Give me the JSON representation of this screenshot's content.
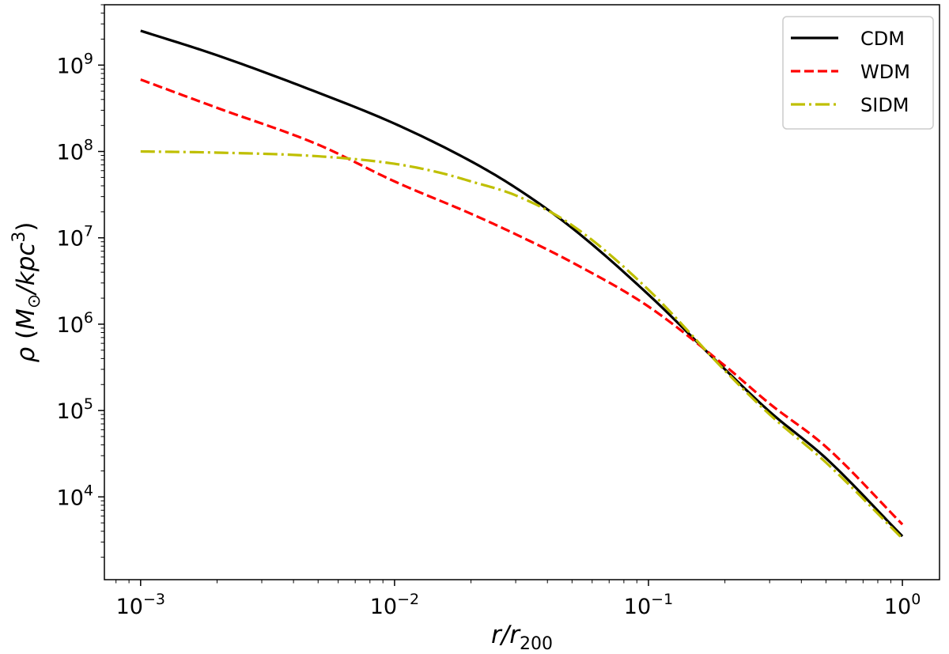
{
  "chart_data": {
    "type": "line",
    "xscale": "log",
    "yscale": "log",
    "xlim": [
      0.00072,
      1.4
    ],
    "ylim": [
      1100,
      5000000000
    ],
    "xlabel": {
      "main": "r/r",
      "sub": "200"
    },
    "ylabel": {
      "rho": "ρ",
      "open": " (",
      "m": "M",
      "sun": "⊙",
      "unit": "/kpc",
      "exp": "3",
      "close": ")"
    },
    "x_ticks": [
      {
        "value": 0.001,
        "base": "10",
        "exp": "−3"
      },
      {
        "value": 0.01,
        "base": "10",
        "exp": "−2"
      },
      {
        "value": 0.1,
        "base": "10",
        "exp": "−1"
      },
      {
        "value": 1,
        "base": "10",
        "exp": "0"
      }
    ],
    "y_ticks": [
      {
        "value": 10000,
        "base": "10",
        "exp": "4"
      },
      {
        "value": 100000,
        "base": "10",
        "exp": "5"
      },
      {
        "value": 1000000,
        "base": "10",
        "exp": "6"
      },
      {
        "value": 10000000,
        "base": "10",
        "exp": "7"
      },
      {
        "value": 100000000,
        "base": "10",
        "exp": "8"
      },
      {
        "value": 1000000000,
        "base": "10",
        "exp": "9"
      }
    ],
    "legend_position": "top-right",
    "series": [
      {
        "name": "CDM",
        "color": "#000000",
        "style": "solid",
        "x": [
          0.001,
          0.002,
          0.005,
          0.01,
          0.02,
          0.03,
          0.05,
          0.1,
          0.2,
          0.3,
          0.5,
          1.0
        ],
        "y": [
          2500000000,
          1300000000,
          480000000,
          210000000,
          77000000,
          38000000,
          13000000,
          2200000,
          300000,
          97000,
          28000,
          3500
        ]
      },
      {
        "name": "WDM",
        "color": "#ff0000",
        "style": "dashed",
        "x": [
          0.001,
          0.002,
          0.005,
          0.01,
          0.02,
          0.03,
          0.05,
          0.1,
          0.2,
          0.3,
          0.5,
          1.0
        ],
        "y": [
          680000000,
          320000000,
          120000000,
          45000000,
          19000000,
          11000000,
          5200000,
          1600000,
          330000,
          120000,
          38000,
          4800
        ]
      },
      {
        "name": "SIDM",
        "color": "#bfbf00",
        "style": "dashdot",
        "x": [
          0.001,
          0.002,
          0.005,
          0.01,
          0.015,
          0.02,
          0.03,
          0.05,
          0.1,
          0.2,
          0.3,
          0.5,
          1.0
        ],
        "y": [
          100000000,
          97000000,
          88000000,
          72000000,
          57000000,
          45000000,
          31000000,
          14000000,
          2500000,
          290000,
          90000,
          25000,
          3300
        ]
      }
    ]
  }
}
